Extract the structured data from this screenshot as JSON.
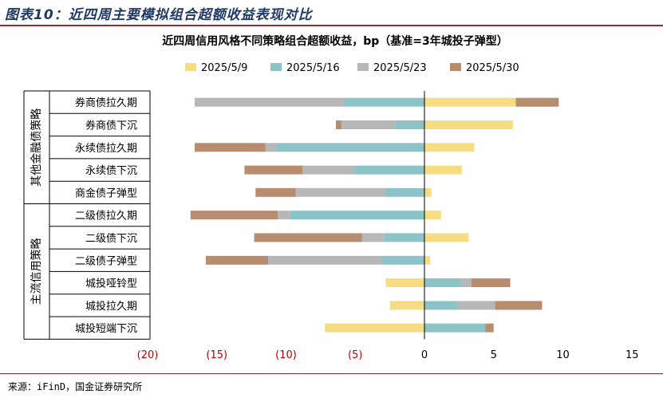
{
  "header": {
    "figure_title": "图表10：近四周主要模拟组合超额收益表现对比"
  },
  "footer": {
    "source": "来源：iFinD，国金证券研究所"
  },
  "chart_data": {
    "type": "bar",
    "orientation": "horizontal",
    "stacked": "diverging",
    "title": "近四周信用风格不同策略组合超额收益，bp（基准=3年城投子弹型）",
    "legend_position": "top",
    "xlim": [
      -20,
      15
    ],
    "xticks": [
      -20,
      -15,
      -10,
      -5,
      0,
      5,
      10,
      15
    ],
    "xtick_labels": [
      "(20)",
      "(15)",
      "(10)",
      "(5)",
      "0",
      "5",
      "10",
      "15"
    ],
    "negative_tick_color": "#c00000",
    "groups": [
      {
        "label": "其他金融债策略",
        "categories": [
          "券商债拉久期",
          "券商债下沉",
          "永续债拉久期",
          "永续债下沉",
          "商金债子弹型"
        ]
      },
      {
        "label": "主流信用策略",
        "categories": [
          "二级债拉久期",
          "二级债下沉",
          "二级债子弹型",
          "城投哑铃型",
          "城投拉久期",
          "城投短端下沉"
        ]
      }
    ],
    "categories": [
      "券商债拉久期",
      "券商债下沉",
      "永续债拉久期",
      "永续债下沉",
      "商金债子弹型",
      "二级债拉久期",
      "二级债下沉",
      "二级债子弹型",
      "城投哑铃型",
      "城投拉久期",
      "城投短端下沉"
    ],
    "series": [
      {
        "name": "2025/5/9",
        "color": "#f6dc83",
        "values": [
          6.6,
          6.4,
          3.6,
          2.7,
          0.5,
          1.2,
          3.2,
          0.4,
          -2.8,
          -2.5,
          -7.2
        ]
      },
      {
        "name": "2025/5/16",
        "color": "#8cc3c9",
        "values": [
          -5.8,
          -2.1,
          -10.7,
          -5.1,
          -2.8,
          -9.7,
          -2.9,
          -3.1,
          2.6,
          2.4,
          4.4
        ]
      },
      {
        "name": "2025/5/23",
        "color": "#b7b7b7",
        "values": [
          -10.8,
          -3.9,
          -0.8,
          -3.7,
          -6.5,
          -0.9,
          -1.6,
          -8.2,
          0.8,
          2.7,
          0.0
        ]
      },
      {
        "name": "2025/5/30",
        "color": "#b88c6e",
        "values": [
          3.1,
          -0.4,
          -5.1,
          -4.2,
          -2.9,
          -6.3,
          -7.8,
          -4.5,
          2.8,
          3.4,
          0.6
        ]
      }
    ]
  }
}
